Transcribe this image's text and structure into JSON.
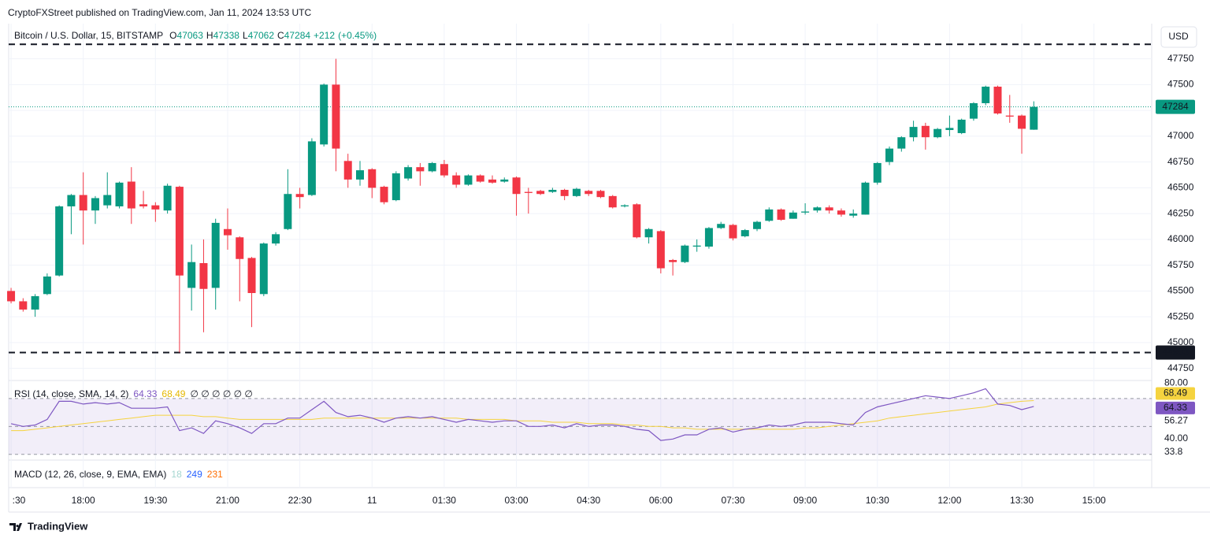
{
  "page": {
    "attribution": "CryptoFXStreet published on TradingView.com, Jan 11, 2024 13:53 UTC",
    "currency": "USD",
    "brand": "TradingView"
  },
  "chart_data": [
    {
      "type": "candlestick",
      "title": "Bitcoin / U.S. Dollar, 15, BITSTAMP",
      "ohlc_legend": [
        {
          "label": "O",
          "value": 47063
        },
        {
          "label": "H",
          "value": 47338
        },
        {
          "label": "L",
          "value": 47062
        },
        {
          "label": "C",
          "value": 47284
        }
      ],
      "change": {
        "value": 212,
        "label": "+212"
      },
      "change_pct": {
        "value": 0.45,
        "label": "(+0.45%)"
      },
      "up_color": "#089981",
      "down_color": "#f23645",
      "open": [
        45500,
        45400,
        45320,
        45470,
        45650,
        46320,
        46430,
        46280,
        46330,
        46320,
        46560,
        46340,
        46330,
        46280,
        46510,
        45530,
        45770,
        45530,
        46100,
        46020,
        45820,
        45470,
        45960,
        46100,
        46440,
        46430,
        46920,
        47500,
        46760,
        46580,
        46680,
        46510,
        46380,
        46590,
        46700,
        46660,
        46730,
        46620,
        46530,
        46620,
        46580,
        46560,
        46600,
        46460,
        46470,
        46460,
        46480,
        46420,
        46470,
        46470,
        46420,
        46320,
        46340,
        46020,
        46080,
        45800,
        45780,
        45930,
        45930,
        46110,
        46140,
        46030,
        46100,
        46180,
        46290,
        46200,
        46260,
        46280,
        46310,
        46280,
        46230,
        46240,
        46550,
        46750,
        46880,
        46990,
        47100,
        46990,
        47060,
        47030,
        47170,
        47320,
        47480,
        47200,
        47200,
        47063
      ],
      "high": [
        45530,
        45430,
        45470,
        45670,
        46330,
        46440,
        46650,
        46420,
        46650,
        46560,
        46700,
        46470,
        46360,
        46540,
        46520,
        45950,
        46000,
        46200,
        46300,
        46030,
        45830,
        45970,
        46070,
        46680,
        46500,
        46980,
        47510,
        47750,
        46830,
        46760,
        46690,
        46520,
        46660,
        46720,
        46740,
        46750,
        46770,
        46650,
        46630,
        46630,
        46620,
        46600,
        46610,
        46500,
        46480,
        46500,
        46490,
        46500,
        46480,
        46480,
        46430,
        46340,
        46350,
        46110,
        46090,
        45810,
        45950,
        46000,
        46120,
        46170,
        46150,
        46100,
        46180,
        46310,
        46300,
        46280,
        46350,
        46320,
        46330,
        46300,
        46290,
        46560,
        46750,
        46900,
        47000,
        47150,
        47130,
        47080,
        47200,
        47170,
        47330,
        47490,
        47490,
        47400,
        47210,
        47338
      ],
      "low": [
        45380,
        45300,
        45250,
        45460,
        45640,
        46050,
        45950,
        46150,
        46300,
        46300,
        46150,
        46300,
        46170,
        46250,
        44903,
        45310,
        45100,
        45320,
        45900,
        45400,
        45150,
        45450,
        45940,
        46090,
        46300,
        46420,
        46900,
        46660,
        46500,
        46520,
        46400,
        46340,
        46370,
        46570,
        46520,
        46650,
        46600,
        46500,
        46520,
        46550,
        46540,
        46550,
        46230,
        46250,
        46430,
        46450,
        46380,
        46410,
        46420,
        46400,
        46300,
        46310,
        46010,
        45960,
        45670,
        45650,
        45770,
        45880,
        45910,
        46100,
        45990,
        46020,
        46080,
        46170,
        46180,
        46200,
        46240,
        46260,
        46250,
        46220,
        46210,
        46240,
        46530,
        46720,
        46850,
        46950,
        46870,
        46980,
        47000,
        47020,
        47150,
        47300,
        47210,
        47130,
        46830,
        47062
      ],
      "close": [
        45400,
        45320,
        45450,
        45640,
        46320,
        46430,
        46280,
        46400,
        46430,
        46550,
        46300,
        46320,
        46290,
        46520,
        45650,
        45780,
        45520,
        46160,
        46040,
        45810,
        45480,
        45960,
        46050,
        46440,
        46410,
        46950,
        47500,
        46880,
        46580,
        46670,
        46500,
        46360,
        46640,
        46700,
        46660,
        46740,
        46620,
        46530,
        46620,
        46560,
        46550,
        46580,
        46440,
        46450,
        46440,
        46480,
        46420,
        46490,
        46440,
        46410,
        46310,
        46330,
        46020,
        46100,
        45720,
        45780,
        45940,
        45940,
        46110,
        46150,
        46010,
        46090,
        46170,
        46290,
        46190,
        46260,
        46270,
        46310,
        46280,
        46240,
        46250,
        46550,
        46740,
        46880,
        46990,
        47090,
        46990,
        47070,
        47080,
        47160,
        47320,
        47480,
        47220,
        47190,
        47072,
        47284
      ],
      "resistance": 47890,
      "support": 44903,
      "ylim": [
        44640,
        47900
      ],
      "yticks": [
        44750,
        45000,
        45250,
        45500,
        45750,
        46000,
        46250,
        46500,
        46750,
        47000,
        47250,
        47500,
        47750
      ],
      "xlim": [
        -0.2,
        94.8
      ],
      "xticks": [
        {
          "value": 0,
          "label": ":30"
        },
        {
          "value": 6,
          "label": "18:00"
        },
        {
          "value": 12,
          "label": "19:30"
        },
        {
          "value": 18,
          "label": "21:00"
        },
        {
          "value": 24,
          "label": "22:30"
        },
        {
          "value": 30,
          "label": "11"
        },
        {
          "value": 36,
          "label": "01:30"
        },
        {
          "value": 42,
          "label": "03:00"
        },
        {
          "value": 48,
          "label": "04:30"
        },
        {
          "value": 54,
          "label": "06:00"
        },
        {
          "value": 60,
          "label": "07:30"
        },
        {
          "value": 66,
          "label": "09:00"
        },
        {
          "value": 72,
          "label": "10:30"
        },
        {
          "value": 78,
          "label": "12:00"
        },
        {
          "value": 84,
          "label": "13:30"
        },
        {
          "value": 90,
          "label": "15:00"
        }
      ]
    },
    {
      "type": "line",
      "title": "RSI (14, close, SMA, 14, 2)",
      "placeholders": "∅ ∅ ∅ ∅ ∅ ∅",
      "series": [
        {
          "color": "#7e57c2",
          "values": [
            52,
            50,
            51,
            55,
            68,
            68,
            66,
            67,
            66,
            67,
            63,
            63,
            63,
            64,
            47,
            49,
            45,
            54,
            52,
            49,
            45,
            52,
            52,
            56,
            56,
            62,
            68,
            60,
            57,
            58,
            56,
            53,
            56,
            57,
            56,
            57,
            55,
            53,
            55,
            54,
            53,
            54,
            54,
            50,
            50,
            51,
            49,
            52,
            50,
            51,
            51,
            50,
            48,
            47,
            40,
            41,
            44,
            44,
            48,
            49,
            46,
            48,
            49,
            51,
            50,
            51,
            53,
            53,
            53,
            52,
            51,
            60,
            64,
            66,
            68,
            70,
            72,
            71,
            70,
            72,
            74,
            77,
            66,
            65,
            62,
            64.33
          ],
          "last": 64.33
        },
        {
          "color": "#f5d33f",
          "values": [
            47,
            47,
            48,
            49,
            50,
            51,
            52,
            53,
            54,
            55,
            56,
            57,
            58,
            58,
            58,
            58,
            57,
            57,
            56,
            55,
            55,
            55,
            55,
            55,
            55,
            55,
            56,
            56,
            56,
            56,
            56,
            56,
            56,
            56,
            56,
            56,
            56,
            56,
            55,
            55,
            55,
            55,
            54,
            54,
            54,
            53,
            53,
            53,
            52,
            52,
            52,
            51,
            51,
            50,
            50,
            49,
            49,
            48,
            48,
            48,
            48,
            48,
            48,
            48,
            48,
            48,
            49,
            49,
            50,
            51,
            52,
            53,
            54,
            56,
            57,
            58,
            59,
            60,
            61,
            62,
            63,
            64,
            66,
            67,
            68,
            68.49
          ],
          "last": 68.49
        }
      ],
      "bands": [
        70,
        50,
        30
      ],
      "band_fill": "#7e57c2",
      "ylim": [
        28.2,
        82.3
      ],
      "yticks": [
        {
          "value": 80,
          "label": "80.00"
        },
        {
          "value": 40,
          "label": "40.00"
        }
      ],
      "markers": [
        56.27,
        33.8
      ],
      "xlim": [
        -0.2,
        94.8
      ]
    },
    {
      "type": "macd",
      "title": "MACD (12, 26, close, 9, EMA, EMA)",
      "readings": [
        {
          "value": 18,
          "color": "#a5d6d0"
        },
        {
          "value": 249,
          "color": "#2962ff"
        },
        {
          "value": 231,
          "color": "#ff6d00"
        }
      ]
    }
  ]
}
